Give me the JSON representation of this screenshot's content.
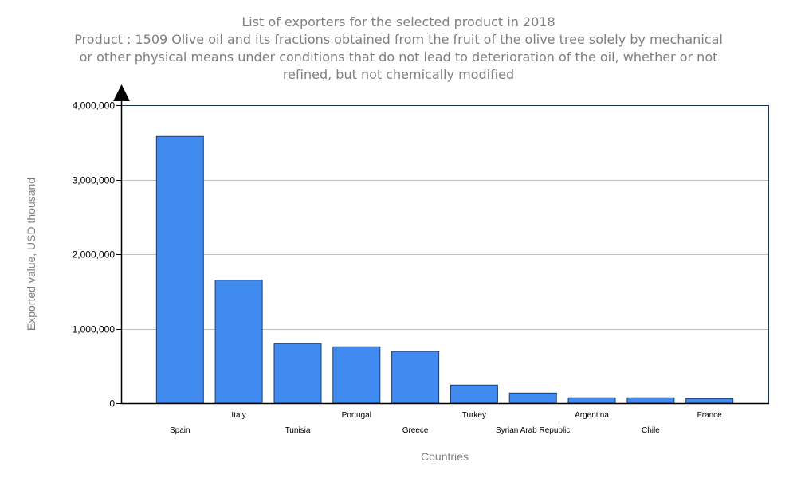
{
  "chart_data": {
    "type": "bar",
    "title": "List of exporters for the selected product in 2018",
    "subtitle": "Product : 1509 Olive oil and its fractions obtained from the fruit of the olive tree solely by mechanical or other physical means under conditions that do not lead to deterioration of the oil, whether or not refined, but not chemically modified",
    "subtitle_lines": [
      "Product : 1509 Olive oil and its fractions obtained from the fruit of the olive tree solely by mechanical",
      "or other physical means under conditions that do not lead to deterioration of the oil, whether or not",
      "refined, but not chemically modified"
    ],
    "xlabel": "Countries",
    "ylabel": "Exported value, USD thousand",
    "categories": [
      "Spain",
      "Italy",
      "Tunisia",
      "Portugal",
      "Greece",
      "Turkey",
      "Syrian Arab Republic",
      "Argentina",
      "Chile",
      "France"
    ],
    "values": [
      3580000,
      1650000,
      800000,
      756000,
      695000,
      243000,
      136000,
      72000,
      72000,
      61000
    ],
    "ylim": [
      0,
      4000000
    ],
    "yticks": [
      0,
      1000000,
      2000000,
      3000000,
      4000000
    ],
    "ytick_labels": [
      "0",
      "1,000,000",
      "2,000,000",
      "3,000,000",
      "4,000,000"
    ],
    "grid": true,
    "legend": "none",
    "colors": {
      "bar_fill": "#418bf0",
      "bar_stroke": "#1a3d6e",
      "frame": "#1a3358",
      "grid": "#c0c0c0",
      "title": "#7f7f7f"
    }
  }
}
